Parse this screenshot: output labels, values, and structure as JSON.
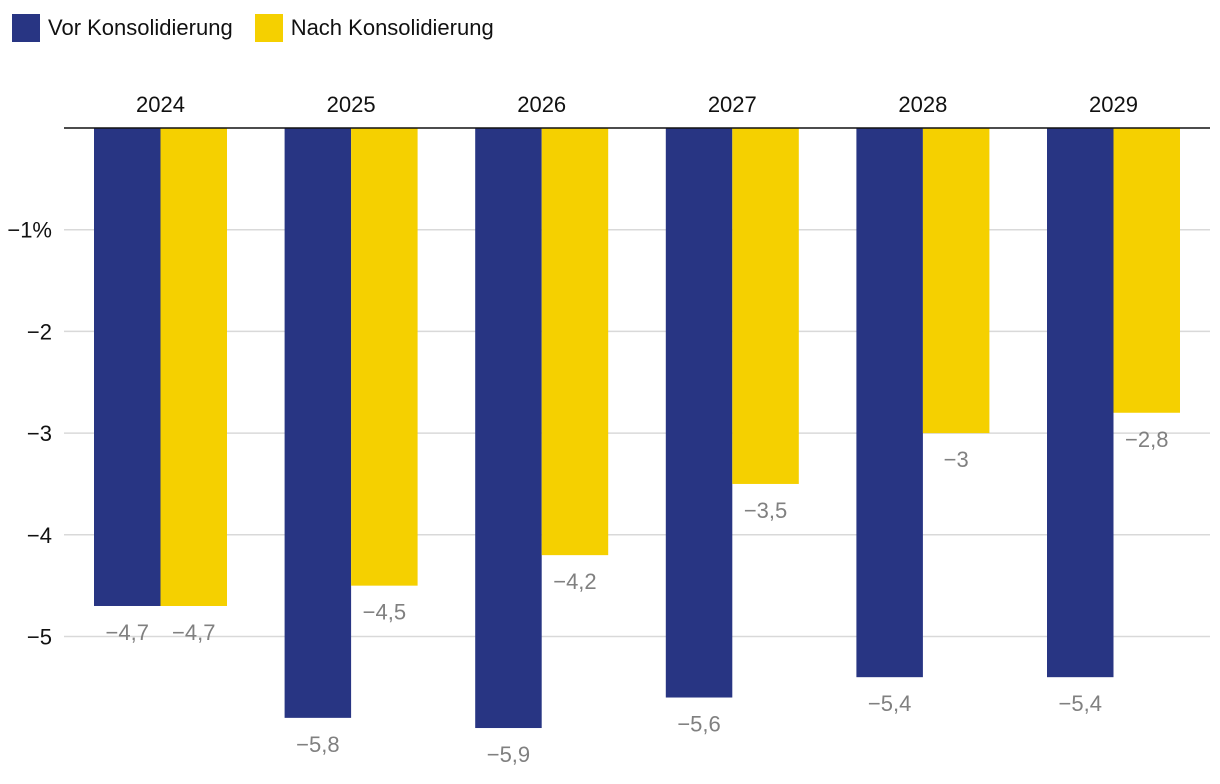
{
  "chart_data": {
    "type": "bar",
    "title": "",
    "xlabel": "",
    "ylabel": "",
    "categories": [
      "2024",
      "2025",
      "2026",
      "2027",
      "2028",
      "2029"
    ],
    "series": [
      {
        "name": "Vor Konsolidierung",
        "color": "#283583",
        "values": [
          -4.7,
          -5.8,
          -5.9,
          -5.6,
          -5.4,
          -5.4
        ],
        "labels": [
          "−4,7",
          "−5,8",
          "−5,9",
          "−5,6",
          "−5,4",
          "−5,4"
        ]
      },
      {
        "name": "Nach Konsolidierung",
        "color": "#F5D000",
        "values": [
          -4.7,
          -4.5,
          -4.2,
          -3.5,
          -3.0,
          -2.8
        ],
        "labels": [
          "−4,7",
          "−4,5",
          "−4,2",
          "−3,5",
          "−3",
          "−2,8"
        ]
      }
    ],
    "yticks": [
      {
        "value": -1,
        "label": "−1%"
      },
      {
        "value": -2,
        "label": "−2"
      },
      {
        "value": -3,
        "label": "−3"
      },
      {
        "value": -4,
        "label": "−4"
      },
      {
        "value": -5,
        "label": "−5"
      }
    ],
    "ylim": [
      -6,
      0
    ],
    "grid": true,
    "legend_position": "top-left",
    "value_label_color": "#808080",
    "grid_color": "#d9d9d9",
    "axis_color": "#111111"
  }
}
